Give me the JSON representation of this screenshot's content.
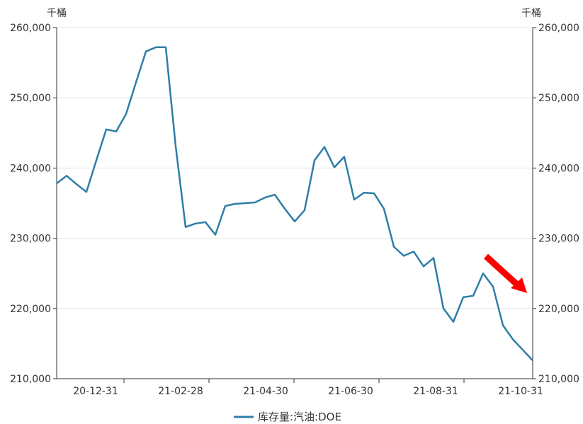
{
  "chart_data": {
    "type": "line",
    "y_unit_left": "千桶",
    "y_unit_right": "千桶",
    "ylim": [
      210000,
      260000
    ],
    "y_ticks": [
      210000,
      220000,
      230000,
      240000,
      250000,
      260000
    ],
    "y_tick_labels": [
      "210,000",
      "220,000",
      "230,000",
      "240,000",
      "250,000",
      "260,000"
    ],
    "x_tick_labels": [
      "20-12-31",
      "21-02-28",
      "21-04-30",
      "21-06-30",
      "21-08-31",
      "21-10-31"
    ],
    "grid": true,
    "legend_position": "bottom-center",
    "series": [
      {
        "name": "库存量:汽油:DOE",
        "color": "#2e7ea6",
        "values": [
          237800,
          238900,
          237700,
          236600,
          241100,
          245500,
          245200,
          247700,
          252200,
          256600,
          257200,
          257200,
          243100,
          231600,
          232100,
          232300,
          230500,
          234600,
          234900,
          235000,
          235100,
          235800,
          236200,
          234200,
          232400,
          234000,
          241100,
          243000,
          240100,
          241600,
          235500,
          236500,
          236400,
          234200,
          228800,
          227500,
          228100,
          226000,
          227200,
          220000,
          218100,
          221600,
          221800,
          225000,
          223100,
          217600,
          215600,
          214100,
          212600
        ]
      }
    ]
  },
  "annotation": {
    "arrow_color": "#ff0000"
  }
}
